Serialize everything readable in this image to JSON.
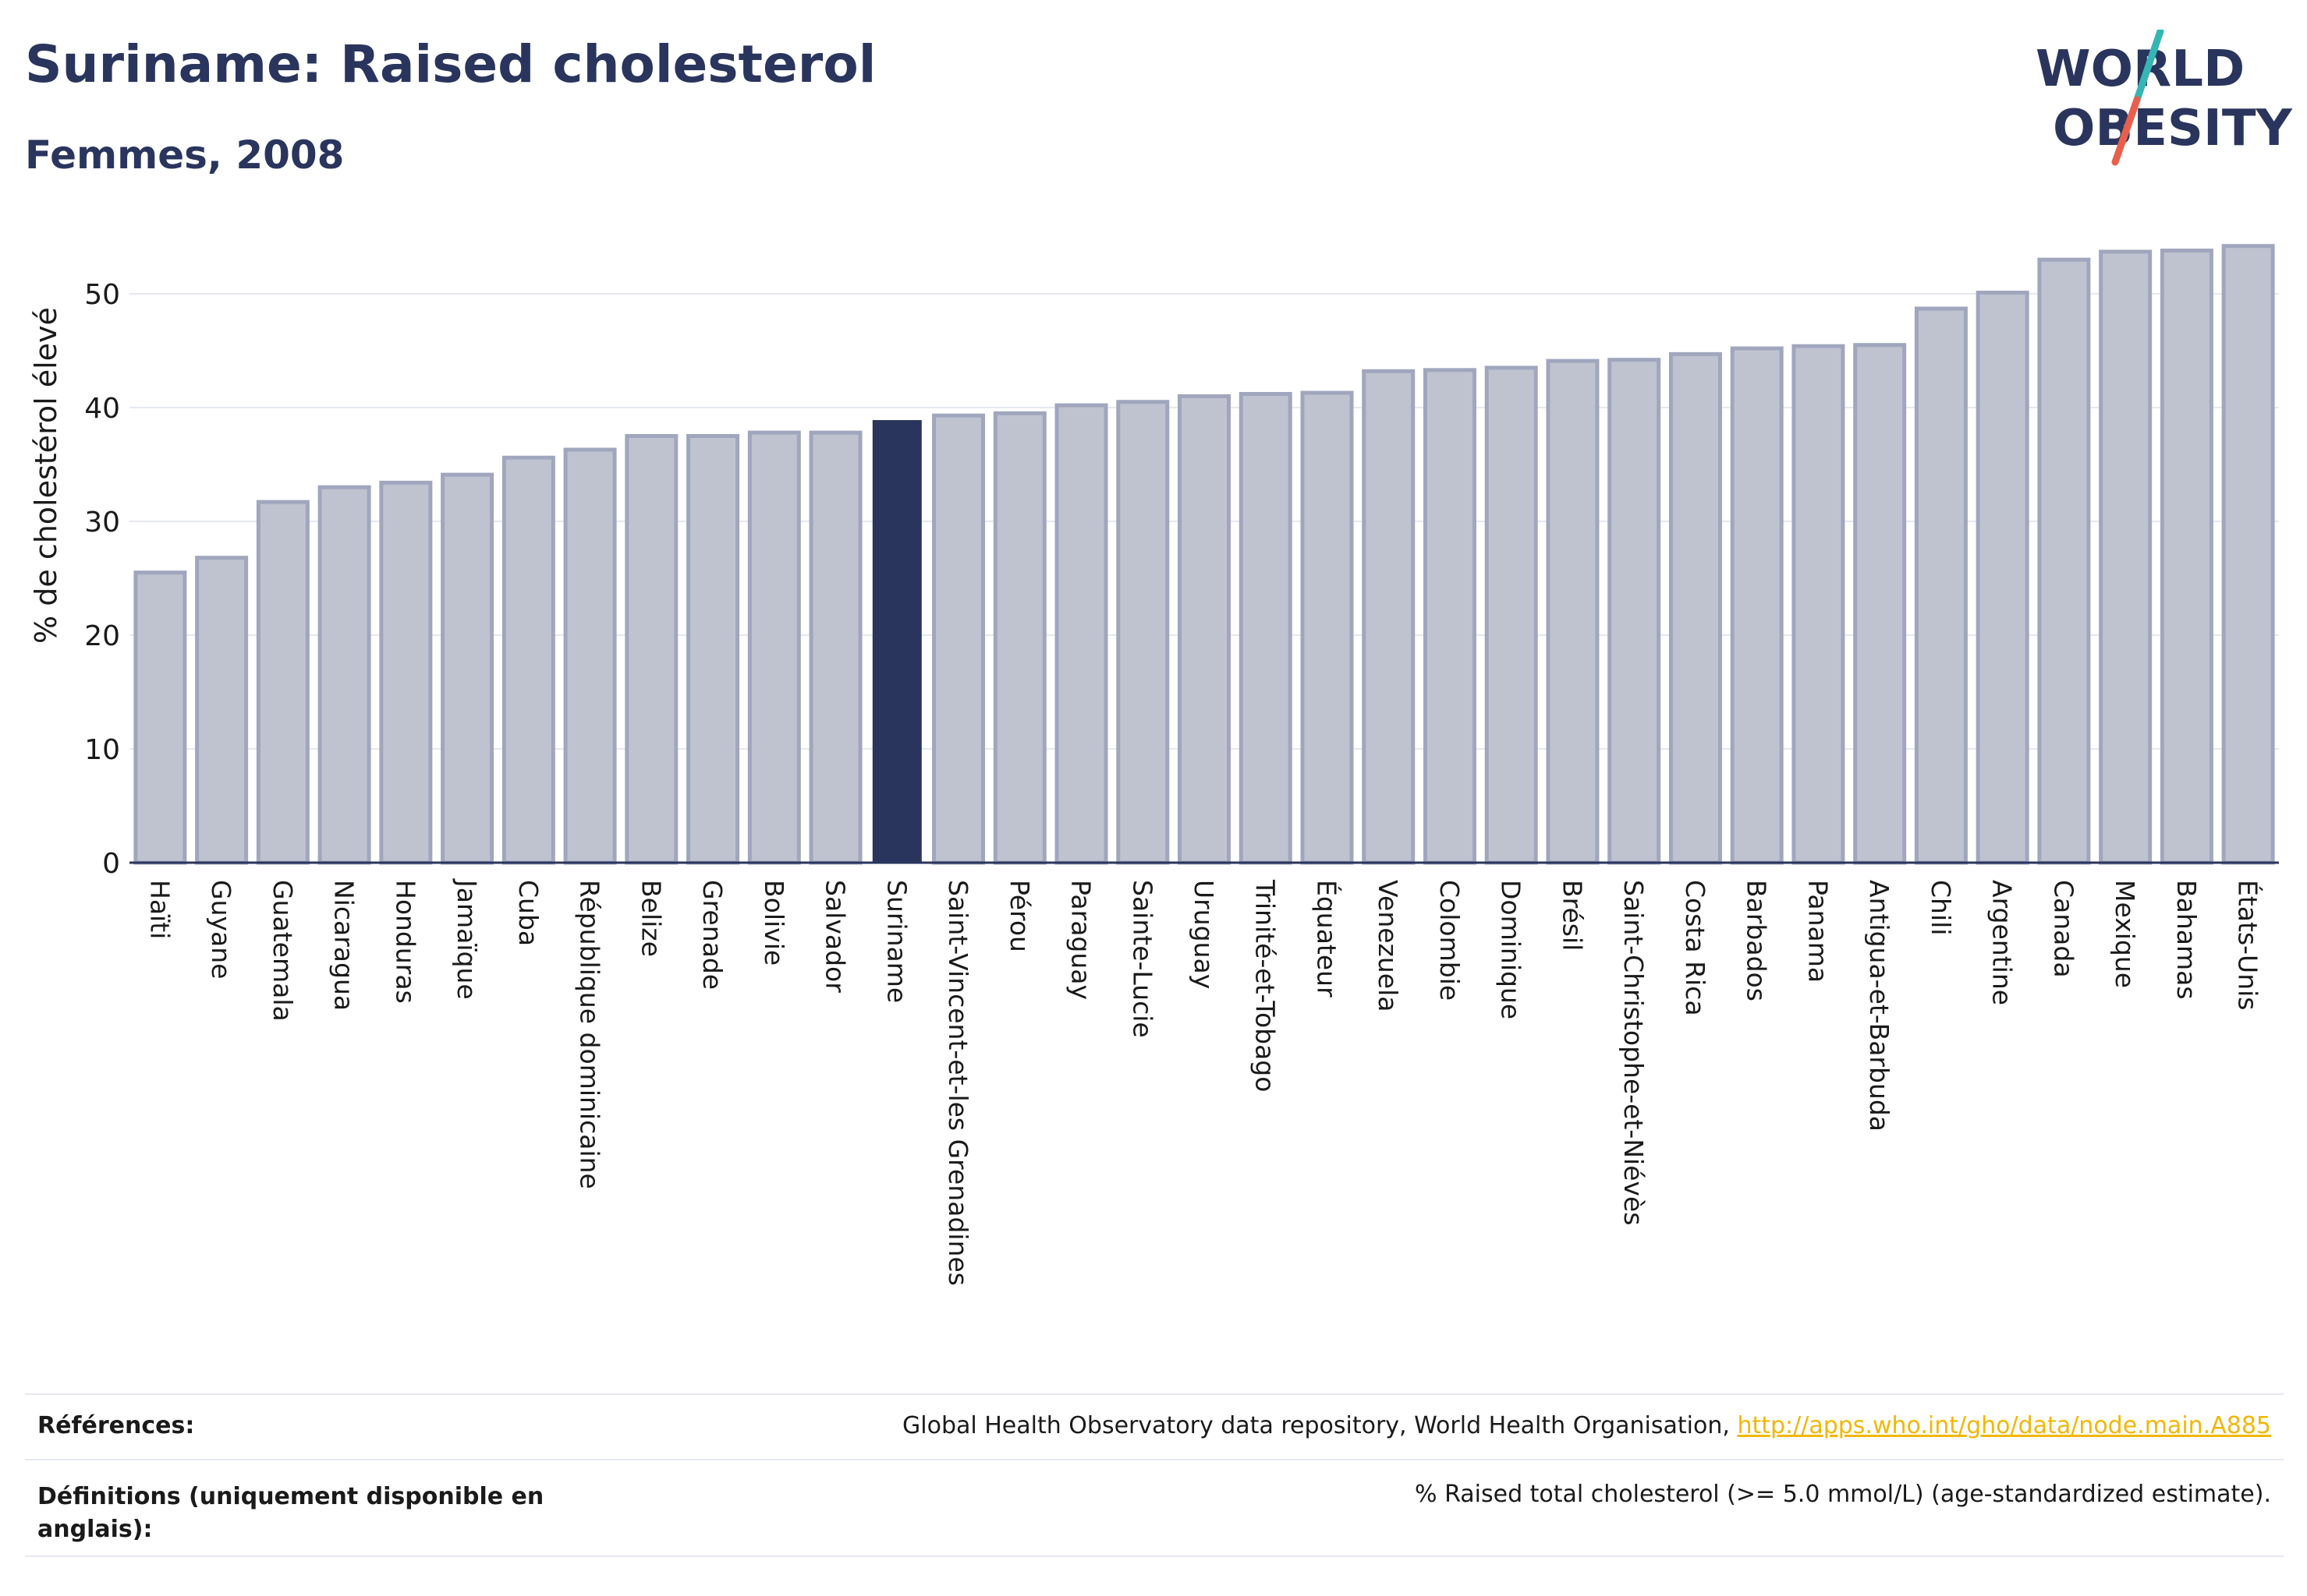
{
  "header": {
    "title": "Suriname: Raised cholesterol",
    "subtitle": "Femmes, 2008"
  },
  "logo": {
    "line1": "WORLD",
    "line2": "OBESITY",
    "slash_colors": [
      "#35b6b4",
      "#e8604c"
    ],
    "text_color": "#2a355e"
  },
  "colors": {
    "bar_default": "#bfc3d0",
    "bar_border": "#a0a6bd",
    "bar_highlight": "#2a355e",
    "grid": "#e6e8ef",
    "axis": "#2a355e"
  },
  "chart_data": {
    "type": "bar",
    "ylabel": "% de cholestérol élevé",
    "ylim": [
      0,
      55
    ],
    "yticks": [
      0,
      10,
      20,
      30,
      40,
      50
    ],
    "grid": true,
    "highlight": "Suriname",
    "categories": [
      "Haïti",
      "Guyane",
      "Guatemala",
      "Nicaragua",
      "Honduras",
      "Jamaïque",
      "Cuba",
      "République dominicaine",
      "Belize",
      "Grenade",
      "Bolivie",
      "Salvador",
      "Suriname",
      "Saint-Vincent-et-les Grenadines",
      "Pérou",
      "Paraguay",
      "Sainte-Lucie",
      "Uruguay",
      "Trinité-et-Tobago",
      "Équateur",
      "Venezuela",
      "Colombie",
      "Dominique",
      "Brésil",
      "Saint-Christophe-et-Niévès",
      "Costa Rica",
      "Barbados",
      "Panama",
      "Antigua-et-Barbuda",
      "Chili",
      "Argentine",
      "Canada",
      "Mexique",
      "Bahamas",
      "États-Unis"
    ],
    "values": [
      25.5,
      26.8,
      31.7,
      33.0,
      33.4,
      34.1,
      35.6,
      36.3,
      37.5,
      37.5,
      37.8,
      37.8,
      38.9,
      39.3,
      39.5,
      40.2,
      40.5,
      41.0,
      41.2,
      41.3,
      43.2,
      43.3,
      43.5,
      44.1,
      44.2,
      44.7,
      45.2,
      45.4,
      45.5,
      48.7,
      50.1,
      53.0,
      53.7,
      53.8,
      54.2
    ]
  },
  "footer": {
    "references_label": "Références:",
    "references_text": "Global Health Observatory data repository, World Health Organisation, ",
    "references_link": "http://apps.who.int/gho/data/node.main.A885",
    "definitions_label": "Définitions (uniquement disponible en anglais):",
    "definitions_text": "% Raised total cholesterol (>= 5.0 mmol/L) (age-standardized estimate)."
  }
}
